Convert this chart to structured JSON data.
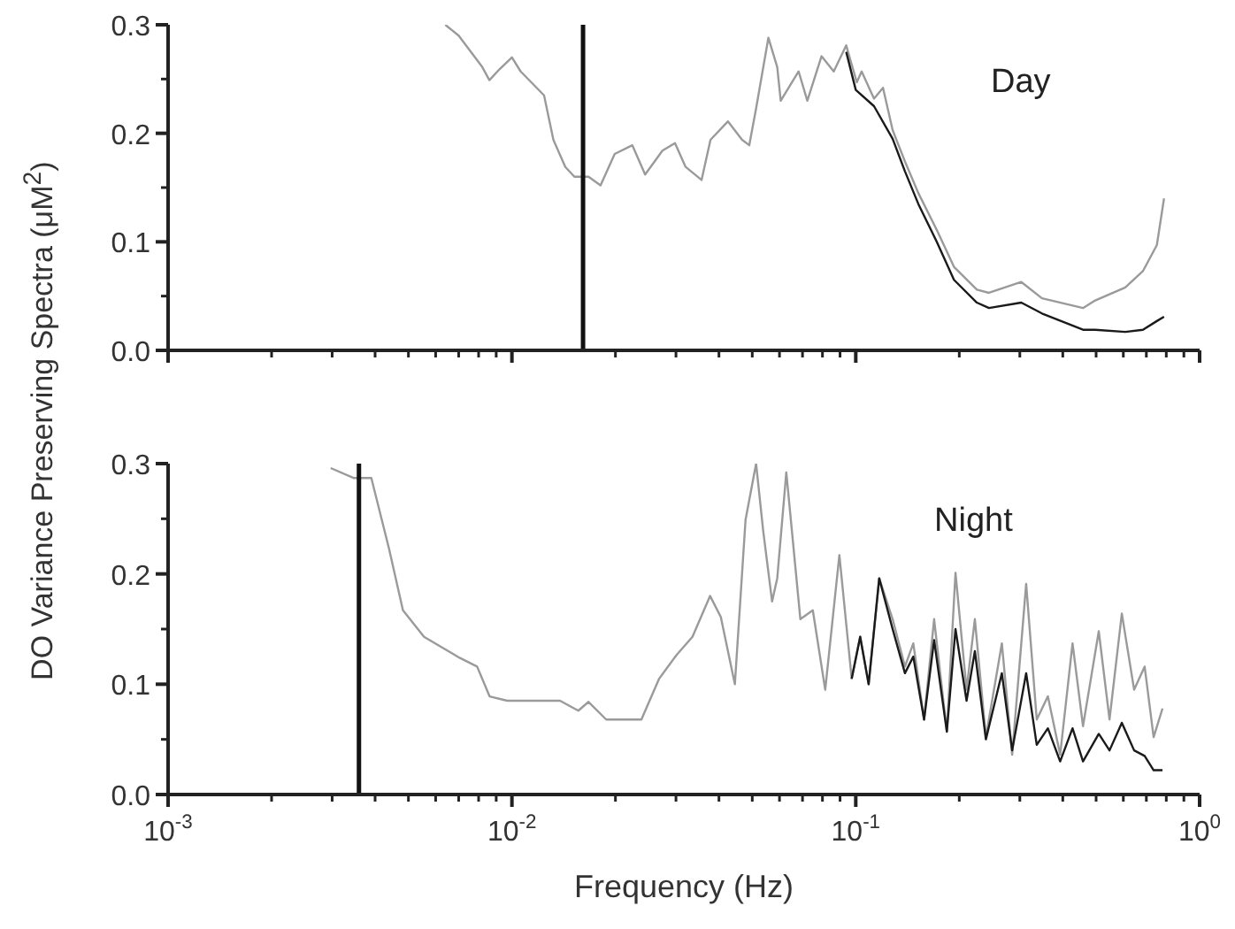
{
  "chart_data": [
    {
      "type": "line",
      "ylabel": "DO Variance Preserving Spectra (μM$^{2}$)",
      "annotations": [
        "Day"
      ],
      "tick_labels": "y",
      "xlim": [
        0.001,
        1
      ],
      "ylim": [
        0,
        0.3
      ],
      "log": "x",
      "xticks": [
        {
          "value": 0.001,
          "label": null
        },
        {
          "value": 0.002,
          "label": null
        },
        {
          "value": 0.003,
          "label": null
        },
        {
          "value": 0.004,
          "label": null
        },
        {
          "value": 0.005,
          "label": null
        },
        {
          "value": 0.006,
          "label": null
        },
        {
          "value": 0.007,
          "label": null
        },
        {
          "value": 0.008,
          "label": null
        },
        {
          "value": 0.009,
          "label": null
        },
        {
          "value": 0.01,
          "label": null
        },
        {
          "value": 0.02,
          "label": null
        },
        {
          "value": 0.03,
          "label": null
        },
        {
          "value": 0.04,
          "label": null
        },
        {
          "value": 0.05,
          "label": null
        },
        {
          "value": 0.06,
          "label": null
        },
        {
          "value": 0.07,
          "label": null
        },
        {
          "value": 0.08,
          "label": null
        },
        {
          "value": 0.09,
          "label": null
        },
        {
          "value": 0.1,
          "label": null
        },
        {
          "value": 0.2,
          "label": null
        },
        {
          "value": 0.3,
          "label": null
        },
        {
          "value": 0.4,
          "label": null
        },
        {
          "value": 0.5,
          "label": null
        },
        {
          "value": 0.6,
          "label": null
        },
        {
          "value": 0.7,
          "label": null
        },
        {
          "value": 0.8,
          "label": null
        },
        {
          "value": 0.9,
          "label": null
        },
        {
          "value": 1,
          "label": null
        }
      ],
      "yticks": [
        {
          "value": 0,
          "label": "0.0"
        },
        {
          "value": 0.05,
          "label": null
        },
        {
          "value": 0.1,
          "label": "0.1"
        },
        {
          "value": 0.15,
          "label": null
        },
        {
          "value": 0.2,
          "label": "0.2"
        },
        {
          "value": 0.25,
          "label": null
        },
        {
          "value": 0.3,
          "label": "0.3"
        }
      ],
      "ref_lines": [
        {
          "axis": "x",
          "value": 0.0161,
          "color": "#111111"
        }
      ],
      "series": [
        {
          "color": "#9a9a9a",
          "x": [
            0.0064,
            0.007,
            0.0082,
            0.0086,
            0.0092,
            0.01,
            0.0106,
            0.0124,
            0.0132,
            0.0143,
            0.0152,
            0.0167,
            0.0181,
            0.0199,
            0.0224,
            0.0244,
            0.0274,
            0.0298,
            0.032,
            0.0356,
            0.0378,
            0.0425,
            0.0467,
            0.049,
            0.0513,
            0.0557,
            0.0591,
            0.0605,
            0.0682,
            0.0723,
            0.0795,
            0.0863,
            0.0938,
            0.1007,
            0.104,
            0.113,
            0.12,
            0.128,
            0.139,
            0.152,
            0.172,
            0.193,
            0.225,
            0.244,
            0.303,
            0.348,
            0.458,
            0.497,
            0.608,
            0.684,
            0.751,
            0.788
          ],
          "values": [
            0.3,
            0.29,
            0.261,
            0.249,
            0.259,
            0.27,
            0.257,
            0.235,
            0.194,
            0.169,
            0.16,
            0.16,
            0.152,
            0.181,
            0.189,
            0.162,
            0.184,
            0.191,
            0.169,
            0.157,
            0.194,
            0.211,
            0.194,
            0.189,
            0.223,
            0.288,
            0.261,
            0.23,
            0.257,
            0.23,
            0.271,
            0.257,
            0.281,
            0.247,
            0.257,
            0.232,
            0.242,
            0.203,
            0.174,
            0.145,
            0.111,
            0.077,
            0.056,
            0.053,
            0.063,
            0.048,
            0.039,
            0.046,
            0.058,
            0.073,
            0.097,
            0.14
          ]
        },
        {
          "color": "#1a1a1a",
          "x": [
            0.0938,
            0.1,
            0.113,
            0.128,
            0.139,
            0.152,
            0.172,
            0.193,
            0.225,
            0.244,
            0.303,
            0.348,
            0.458,
            0.497,
            0.608,
            0.684,
            0.751,
            0.788
          ],
          "values": [
            0.275,
            0.24,
            0.225,
            0.195,
            0.165,
            0.135,
            0.1,
            0.065,
            0.044,
            0.039,
            0.044,
            0.034,
            0.019,
            0.019,
            0.017,
            0.019,
            0.027,
            0.031
          ]
        }
      ]
    },
    {
      "type": "line",
      "xlabel": "Frequency (Hz)",
      "annotations": [
        "Night"
      ],
      "xlim": [
        0.001,
        1
      ],
      "ylim": [
        0,
        0.3
      ],
      "log": "x",
      "xticks": [
        {
          "value": 0.001,
          "label": "10$^{-3}$"
        },
        {
          "value": 0.002,
          "label": null
        },
        {
          "value": 0.003,
          "label": null
        },
        {
          "value": 0.004,
          "label": null
        },
        {
          "value": 0.005,
          "label": null
        },
        {
          "value": 0.006,
          "label": null
        },
        {
          "value": 0.007,
          "label": null
        },
        {
          "value": 0.008,
          "label": null
        },
        {
          "value": 0.009,
          "label": null
        },
        {
          "value": 0.01,
          "label": "10$^{-2}$"
        },
        {
          "value": 0.02,
          "label": null
        },
        {
          "value": 0.03,
          "label": null
        },
        {
          "value": 0.04,
          "label": null
        },
        {
          "value": 0.05,
          "label": null
        },
        {
          "value": 0.06,
          "label": null
        },
        {
          "value": 0.07,
          "label": null
        },
        {
          "value": 0.08,
          "label": null
        },
        {
          "value": 0.09,
          "label": null
        },
        {
          "value": 0.1,
          "label": "10$^{-1}$"
        },
        {
          "value": 0.2,
          "label": null
        },
        {
          "value": 0.3,
          "label": null
        },
        {
          "value": 0.4,
          "label": null
        },
        {
          "value": 0.5,
          "label": null
        },
        {
          "value": 0.6,
          "label": null
        },
        {
          "value": 0.7,
          "label": null
        },
        {
          "value": 0.8,
          "label": null
        },
        {
          "value": 0.9,
          "label": null
        },
        {
          "value": 1,
          "label": "10$^{0}$"
        }
      ],
      "yticks": [
        {
          "value": 0,
          "label": "0.0"
        },
        {
          "value": 0.05,
          "label": null
        },
        {
          "value": 0.1,
          "label": "0.1"
        },
        {
          "value": 0.15,
          "label": null
        },
        {
          "value": 0.2,
          "label": "0.2"
        },
        {
          "value": 0.25,
          "label": null
        },
        {
          "value": 0.3,
          "label": "0.3"
        }
      ],
      "ref_lines": [
        {
          "axis": "x",
          "value": 0.00359,
          "color": "#111111"
        }
      ],
      "series": [
        {
          "color": "#9a9a9a",
          "x": [
            0.00297,
            0.00346,
            0.0039,
            0.00439,
            0.00482,
            0.00555,
            0.00704,
            0.00792,
            0.00861,
            0.00969,
            0.0138,
            0.0156,
            0.0167,
            0.0188,
            0.0238,
            0.0268,
            0.0302,
            0.0335,
            0.0377,
            0.0405,
            0.0445,
            0.0478,
            0.0513,
            0.0538,
            0.0571,
            0.0591,
            0.0628,
            0.069,
            0.075,
            0.0815,
            0.0896,
            0.0973,
            0.103,
            0.109,
            0.117,
            0.128,
            0.139,
            0.147,
            0.158,
            0.169,
            0.184,
            0.195,
            0.21,
            0.222,
            0.239,
            0.266,
            0.285,
            0.313,
            0.336,
            0.362,
            0.393,
            0.427,
            0.458,
            0.509,
            0.547,
            0.594,
            0.645,
            0.692,
            0.735,
            0.78
          ],
          "values": [
            0.296,
            0.287,
            0.287,
            0.223,
            0.167,
            0.143,
            0.124,
            0.116,
            0.089,
            0.085,
            0.085,
            0.076,
            0.084,
            0.068,
            0.068,
            0.105,
            0.127,
            0.143,
            0.18,
            0.161,
            0.1,
            0.249,
            0.3,
            0.239,
            0.175,
            0.196,
            0.292,
            0.159,
            0.167,
            0.095,
            0.217,
            0.105,
            0.143,
            0.1,
            0.196,
            0.159,
            0.116,
            0.137,
            0.068,
            0.159,
            0.057,
            0.201,
            0.095,
            0.159,
            0.052,
            0.137,
            0.036,
            0.191,
            0.068,
            0.089,
            0.036,
            0.137,
            0.062,
            0.148,
            0.068,
            0.164,
            0.095,
            0.116,
            0.052,
            0.078
          ]
        },
        {
          "color": "#1a1a1a",
          "x": [
            0.0973,
            0.103,
            0.109,
            0.117,
            0.128,
            0.139,
            0.147,
            0.158,
            0.169,
            0.184,
            0.195,
            0.21,
            0.222,
            0.239,
            0.266,
            0.285,
            0.313,
            0.336,
            0.362,
            0.393,
            0.427,
            0.458,
            0.509,
            0.547,
            0.594,
            0.645,
            0.692,
            0.735,
            0.78
          ],
          "values": [
            0.105,
            0.143,
            0.1,
            0.196,
            0.15,
            0.11,
            0.125,
            0.068,
            0.14,
            0.057,
            0.15,
            0.085,
            0.13,
            0.05,
            0.11,
            0.04,
            0.11,
            0.045,
            0.06,
            0.03,
            0.06,
            0.03,
            0.055,
            0.04,
            0.065,
            0.04,
            0.035,
            0.022,
            0.022
          ]
        }
      ]
    }
  ]
}
